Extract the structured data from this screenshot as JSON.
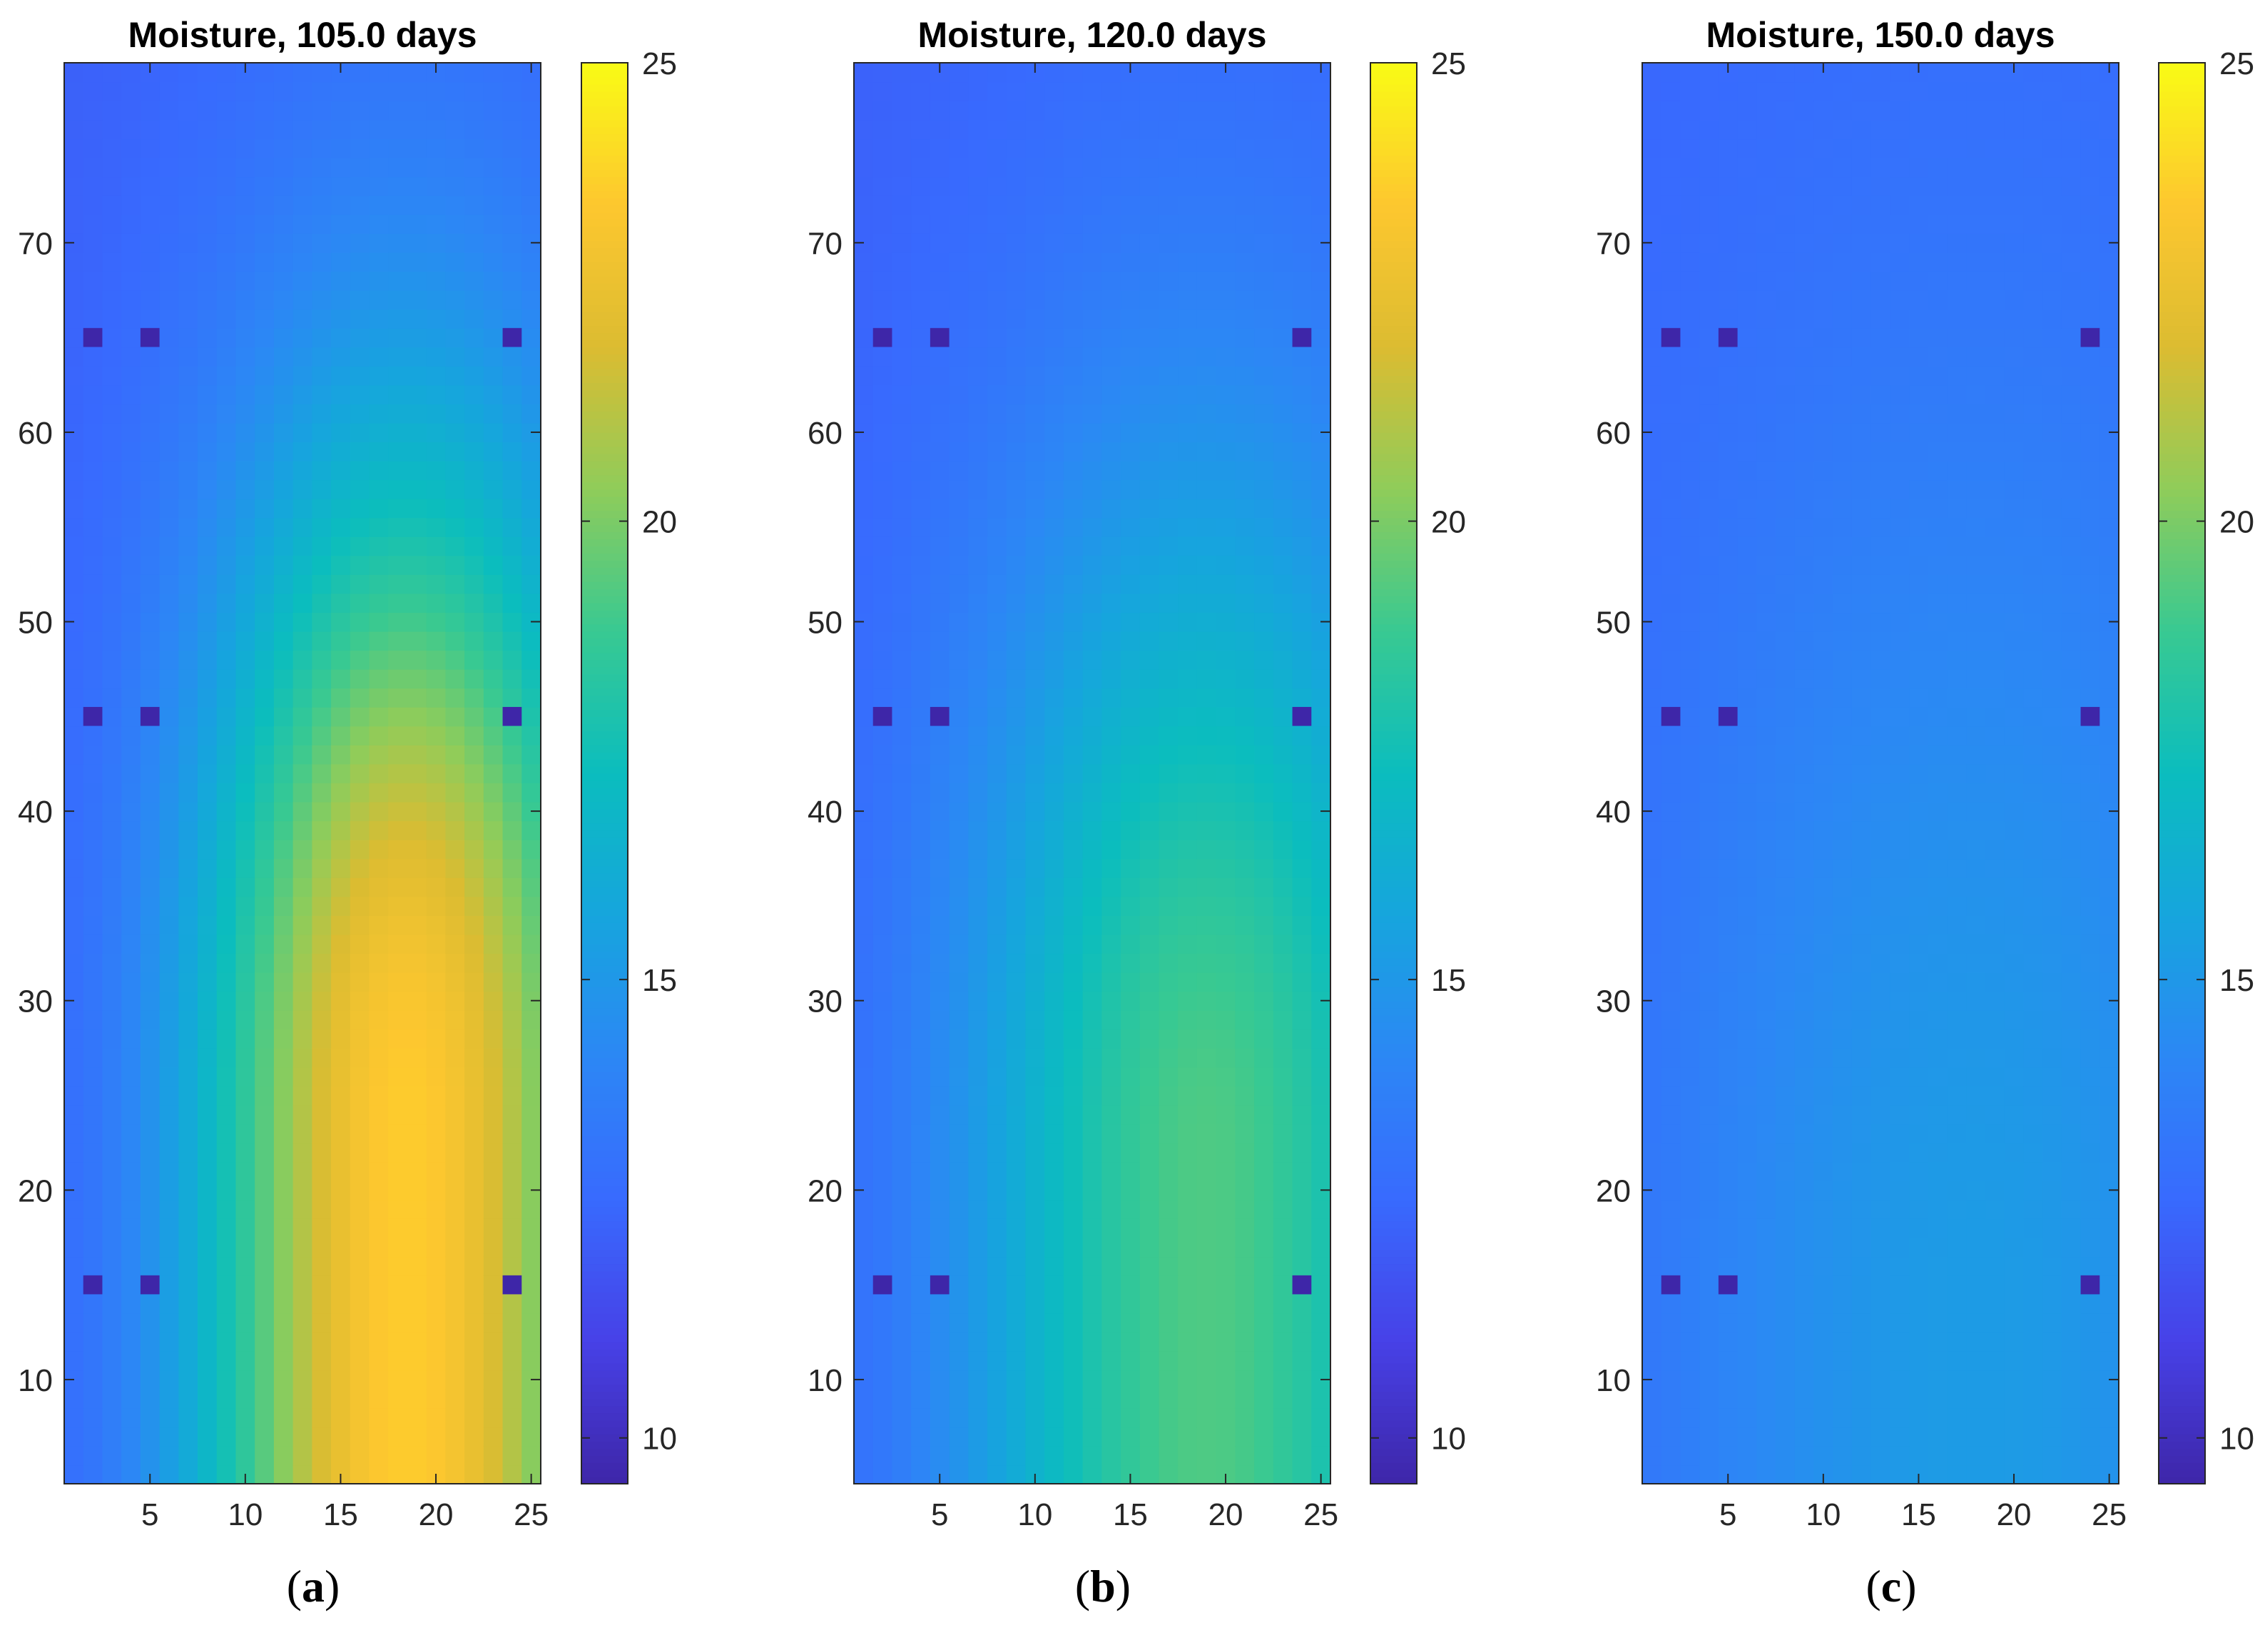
{
  "colormap": "parula",
  "colors": {
    "sensor": "#3b2ea0",
    "axis": "#262626",
    "background": "#ffffff"
  },
  "chart_data": [
    {
      "type": "heatmap",
      "title": "Moisture, 105.0 days",
      "caption_letter": "a",
      "xlim": [
        0.5,
        25.5
      ],
      "ylim": [
        4.5,
        79.5
      ],
      "xticks": [
        5,
        10,
        15,
        20,
        25
      ],
      "yticks": [
        10,
        20,
        30,
        40,
        50,
        60,
        70
      ],
      "colorbar": {
        "range": [
          9.5,
          25
        ],
        "ticks": [
          10,
          15,
          20,
          25
        ]
      },
      "field": {
        "base": 12.2,
        "peak": 23.6,
        "core_x": 18.5,
        "core_y": 24,
        "width_x": 11,
        "height_y": 36,
        "edge_drop": 0.18
      },
      "sensors": {
        "x": [
          2,
          5,
          24
        ],
        "y": [
          15,
          45,
          65
        ],
        "value": 9.5
      }
    },
    {
      "type": "heatmap",
      "title": "Moisture, 120.0 days",
      "caption_letter": "b",
      "xlim": [
        0.5,
        25.5
      ],
      "ylim": [
        4.5,
        79.5
      ],
      "xticks": [
        5,
        10,
        15,
        20,
        25
      ],
      "yticks": [
        10,
        20,
        30,
        40,
        50,
        60,
        70
      ],
      "colorbar": {
        "range": [
          9.5,
          25
        ],
        "ticks": [
          10,
          15,
          20,
          25
        ]
      },
      "field": {
        "base": 12.2,
        "peak": 19.2,
        "core_x": 19,
        "core_y": 22,
        "width_x": 13,
        "height_y": 38,
        "edge_drop": 0.12
      },
      "sensors": {
        "x": [
          2,
          5,
          24
        ],
        "y": [
          15,
          45,
          65
        ],
        "value": 9.5
      }
    },
    {
      "type": "heatmap",
      "title": "Moisture, 150.0 days",
      "caption_letter": "c",
      "xlim": [
        0.5,
        25.5
      ],
      "ylim": [
        4.5,
        79.5
      ],
      "xticks": [
        5,
        10,
        15,
        20,
        25
      ],
      "yticks": [
        10,
        20,
        30,
        40,
        50,
        60,
        70
      ],
      "colorbar": {
        "range": [
          9.5,
          25
        ],
        "ticks": [
          10,
          15,
          20,
          25
        ]
      },
      "field": {
        "base": 12.3,
        "peak": 15.2,
        "core_x": 18,
        "core_y": 14,
        "width_x": 18,
        "height_y": 52,
        "edge_drop": 0.08
      },
      "sensors": {
        "x": [
          2,
          5,
          24
        ],
        "y": [
          15,
          45,
          65
        ],
        "value": 9.5
      }
    }
  ]
}
